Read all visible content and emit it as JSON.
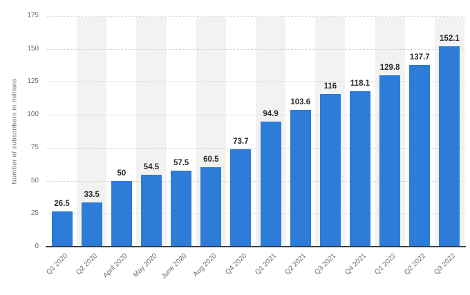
{
  "chart_data": {
    "type": "bar",
    "title": "",
    "xlabel": "",
    "ylabel": "Number of subscribers in millions",
    "categories": [
      "Q1 2020",
      "Q2 2020",
      "April 2020",
      "May 2020",
      "June 2020",
      "Aug 2020",
      "Q4 2020",
      "Q1 2021",
      "Q2 2021",
      "Q3 2021",
      "Q4 2021",
      "Q1 2022",
      "Q2 2022",
      "Q3 2022"
    ],
    "values": [
      26.5,
      33.5,
      50,
      54.5,
      57.5,
      60.5,
      73.7,
      94.9,
      103.6,
      116,
      118.1,
      129.8,
      137.7,
      152.1
    ],
    "value_labels": [
      "26.5",
      "33.5",
      "50",
      "54.5",
      "57.5",
      "60.5",
      "73.7",
      "94.9",
      "103.6",
      "116",
      "118.1",
      "129.8",
      "137.7",
      "152.1"
    ],
    "ylim": [
      0,
      175
    ],
    "yticks": [
      0,
      25,
      50,
      75,
      100,
      125,
      150,
      175
    ],
    "grid": "horizontal-dotted",
    "legend": "none",
    "colors": {
      "bar": "#2d7cd8",
      "stripe": "#f2f2f2",
      "gridline": "#c9c9c9",
      "axis_line": "#3d3d3d",
      "tick_text": "#6d6d6d",
      "value_text": "#2b2b2b"
    }
  }
}
